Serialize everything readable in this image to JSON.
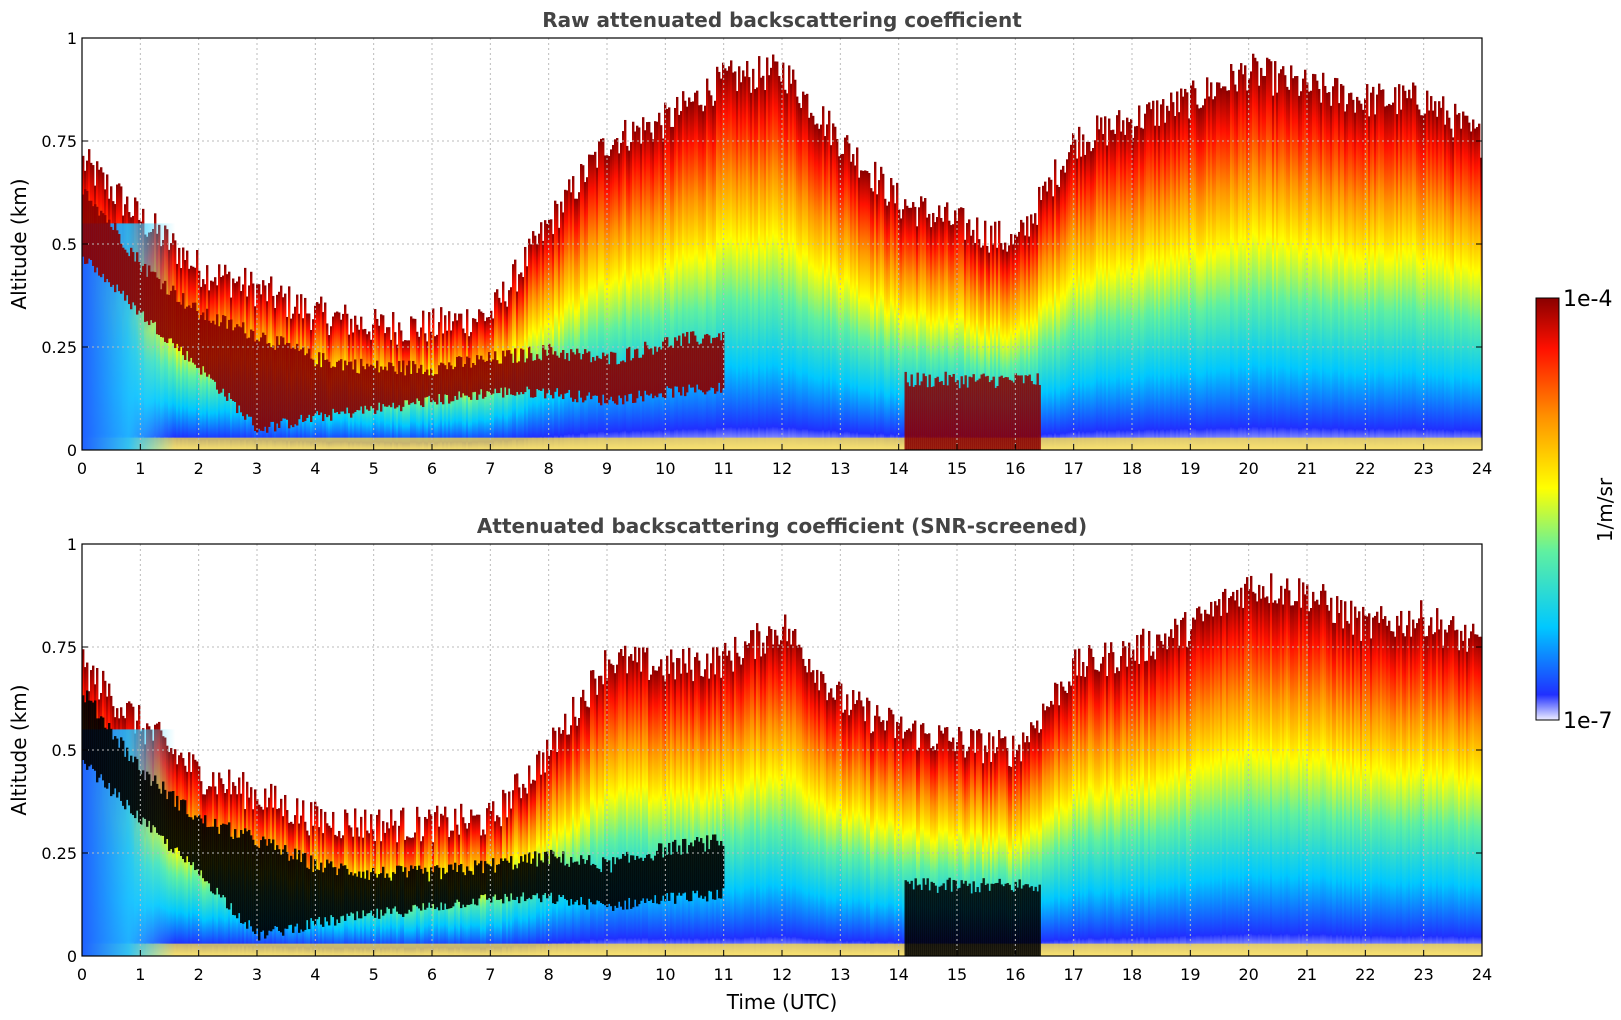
{
  "chart_data": [
    {
      "type": "heatmap",
      "title": "Raw attenuated backscattering coefficient",
      "xlabel": "",
      "ylabel": "Altitude (km)",
      "xlim": [
        0,
        24
      ],
      "ylim": [
        0,
        1
      ],
      "x_ticks": [
        "0",
        "1",
        "2",
        "3",
        "4",
        "5",
        "6",
        "7",
        "8",
        "9",
        "10",
        "11",
        "12",
        "13",
        "14",
        "15",
        "16",
        "17",
        "18",
        "19",
        "20",
        "21",
        "22",
        "23",
        "24"
      ],
      "y_ticks": [
        "0",
        "0.25",
        "0.5",
        "0.75",
        "1"
      ],
      "grid": true,
      "aerosol_layer_top_km": [
        [
          0,
          0.7
        ],
        [
          1,
          0.56
        ],
        [
          2,
          0.44
        ],
        [
          3,
          0.39
        ],
        [
          4,
          0.33
        ],
        [
          5,
          0.3
        ],
        [
          6,
          0.3
        ],
        [
          7,
          0.33
        ],
        [
          8,
          0.55
        ],
        [
          9,
          0.75
        ],
        [
          10,
          0.8
        ],
        [
          11,
          0.9
        ],
        [
          12,
          0.92
        ],
        [
          13,
          0.75
        ],
        [
          14,
          0.6
        ],
        [
          15,
          0.55
        ],
        [
          16,
          0.5
        ],
        [
          17,
          0.75
        ],
        [
          18,
          0.8
        ],
        [
          19,
          0.85
        ],
        [
          20,
          0.92
        ],
        [
          21,
          0.88
        ],
        [
          22,
          0.85
        ],
        [
          23,
          0.85
        ],
        [
          24,
          0.75
        ]
      ]
    },
    {
      "type": "heatmap",
      "title": "Attenuated backscattering coefficient (SNR-screened)",
      "xlabel": "Time (UTC)",
      "ylabel": "Altitude (km)",
      "xlim": [
        0,
        24
      ],
      "ylim": [
        0,
        1
      ],
      "x_ticks": [
        "0",
        "1",
        "2",
        "3",
        "4",
        "5",
        "6",
        "7",
        "8",
        "9",
        "10",
        "11",
        "12",
        "13",
        "14",
        "15",
        "16",
        "17",
        "18",
        "19",
        "20",
        "21",
        "22",
        "23",
        "24"
      ],
      "y_ticks": [
        "0",
        "0.25",
        "0.5",
        "0.75",
        "1"
      ],
      "grid": true,
      "aerosol_layer_top_km": [
        [
          0,
          0.7
        ],
        [
          1,
          0.56
        ],
        [
          2,
          0.44
        ],
        [
          3,
          0.39
        ],
        [
          4,
          0.33
        ],
        [
          5,
          0.32
        ],
        [
          6,
          0.32
        ],
        [
          7,
          0.33
        ],
        [
          8,
          0.5
        ],
        [
          9,
          0.72
        ],
        [
          10,
          0.7
        ],
        [
          11,
          0.72
        ],
        [
          12,
          0.8
        ],
        [
          13,
          0.62
        ],
        [
          14,
          0.55
        ],
        [
          15,
          0.52
        ],
        [
          16,
          0.5
        ],
        [
          17,
          0.7
        ],
        [
          18,
          0.74
        ],
        [
          19,
          0.8
        ],
        [
          20,
          0.9
        ],
        [
          21,
          0.88
        ],
        [
          22,
          0.8
        ],
        [
          23,
          0.82
        ],
        [
          24,
          0.75
        ]
      ]
    }
  ],
  "colorbar": {
    "label": "1/m/sr",
    "max_label": "1e-4",
    "min_label": "1e-7",
    "scale": "log",
    "colors": [
      "#eeeeff",
      "#0000ff",
      "#00ffff",
      "#ffff00",
      "#ff8000",
      "#ff0000",
      "#800000"
    ]
  }
}
